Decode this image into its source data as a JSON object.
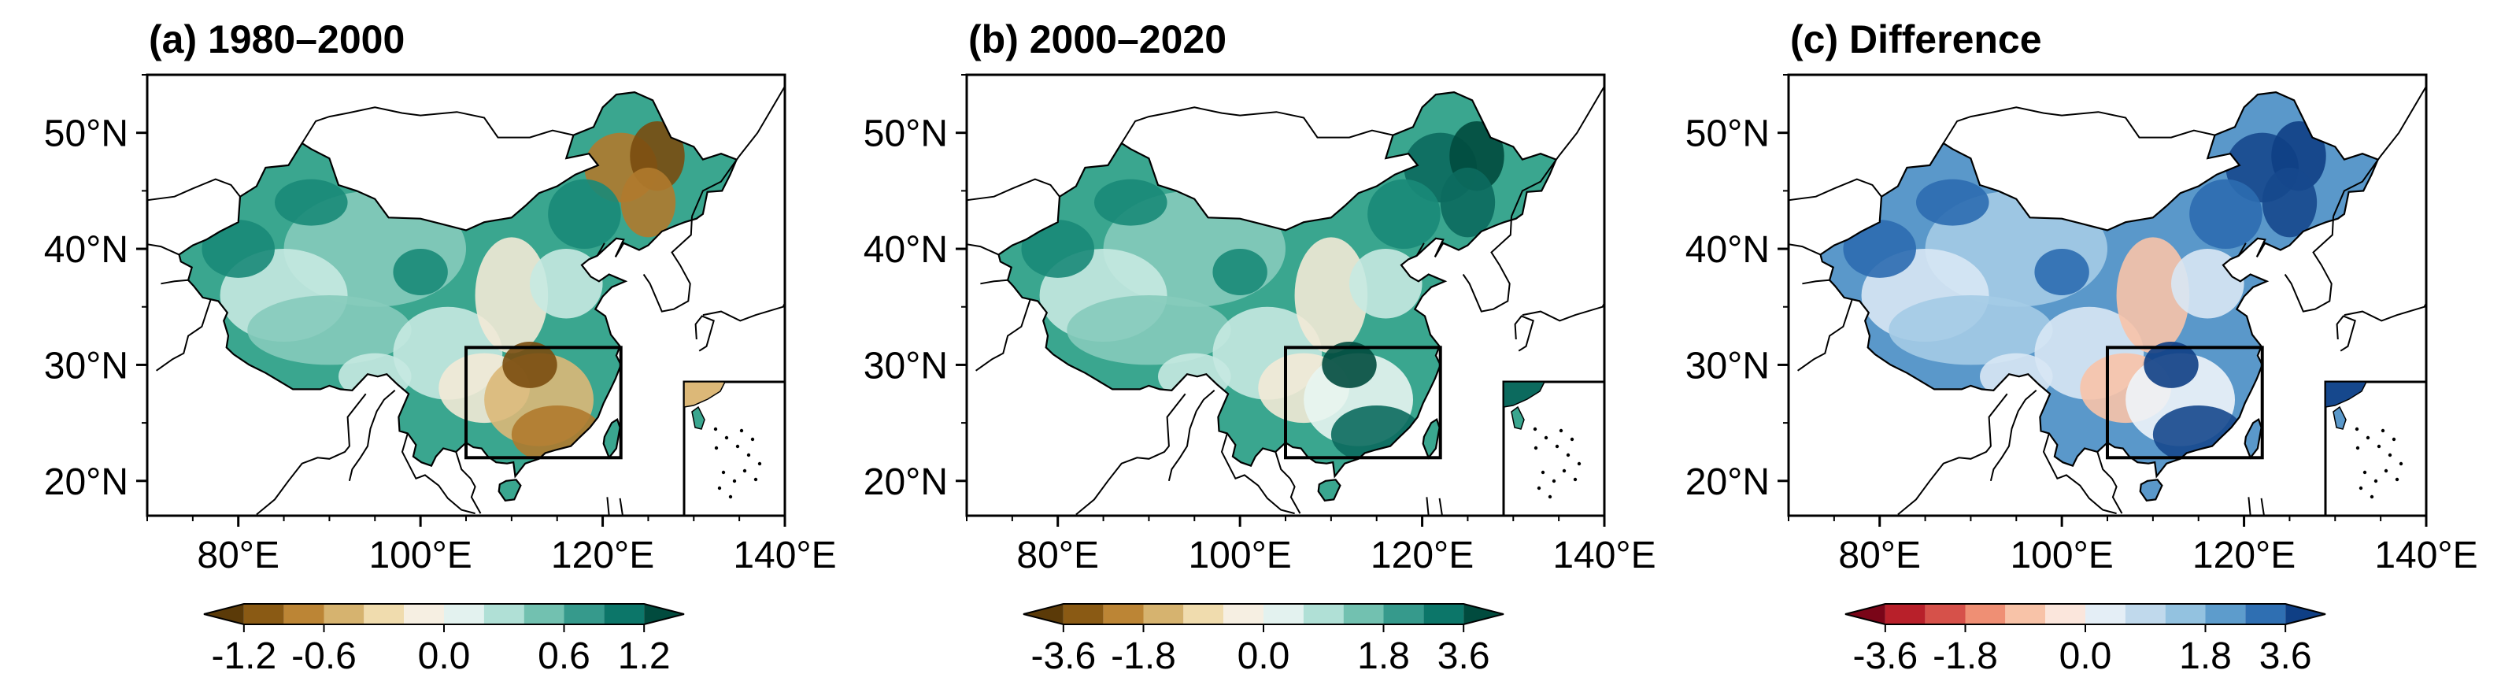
{
  "figure": {
    "panels": [
      {
        "title": "(a) 1980–2000",
        "colorbar": {
          "ticks": [
            "-1.2",
            "-0.6",
            "0.0",
            "0.6",
            "1.2"
          ],
          "colors": [
            "#5b3a08",
            "#8a5a14",
            "#bc8535",
            "#d6b36f",
            "#f0dcae",
            "#f6efe2",
            "#e3f2ef",
            "#b0e0d6",
            "#72c1b0",
            "#369a8c",
            "#0c7669",
            "#014b3e"
          ]
        },
        "fills": [
          "#1a8a78",
          "#3aa68f",
          "#86cbbb",
          "#c6e9e1",
          "#f3ead6",
          "#dcb878",
          "#b07a2e",
          "#7a4c10"
        ]
      },
      {
        "title": "(b) 2000–2020",
        "colorbar": {
          "ticks": [
            "-3.6",
            "-1.8",
            "0.0",
            "1.8",
            "3.6"
          ],
          "colors": [
            "#5b3a08",
            "#8a5a14",
            "#bc8535",
            "#d6b36f",
            "#f0dcae",
            "#f6efe2",
            "#e3f2ef",
            "#b0e0d6",
            "#72c1b0",
            "#369a8c",
            "#0c7669",
            "#014b3e"
          ]
        },
        "fills": [
          "#1a8a78",
          "#3aa68f",
          "#86cbbb",
          "#c6e9e1",
          "#f3ead6",
          "#e8f5f1",
          "#0c6a5e",
          "#014b3e"
        ]
      },
      {
        "title": "(c) Difference",
        "colorbar": {
          "ticks": [
            "-3.6",
            "-1.8",
            "0.0",
            "1.8",
            "3.6"
          ],
          "colors": [
            "#7a0518",
            "#b8202a",
            "#d6514a",
            "#ef8f74",
            "#f8c3a8",
            "#fbe6dc",
            "#e4eef6",
            "#c0d9ec",
            "#93c2e0",
            "#5d9ccc",
            "#2f6fb2",
            "#0f3f85"
          ]
        },
        "fills": [
          "#2c6cb0",
          "#5a98ca",
          "#a4cbe6",
          "#d8e7f4",
          "#f8c3a8",
          "#eef4fa",
          "#16488d",
          "#0f3f85"
        ]
      }
    ],
    "axes": {
      "lat_labels": [
        "50°N",
        "40°N",
        "30°N",
        "20°N"
      ],
      "lon_labels": [
        "80°E",
        "100°E",
        "120°E",
        "140°E"
      ],
      "lat_values": [
        50,
        40,
        30,
        20
      ],
      "lon_values": [
        80,
        100,
        120,
        140
      ],
      "lon_range": [
        70,
        140
      ],
      "lat_range": [
        17,
        55
      ]
    },
    "box_region": {
      "lon": [
        105,
        122
      ],
      "lat": [
        22,
        31.5
      ]
    }
  }
}
